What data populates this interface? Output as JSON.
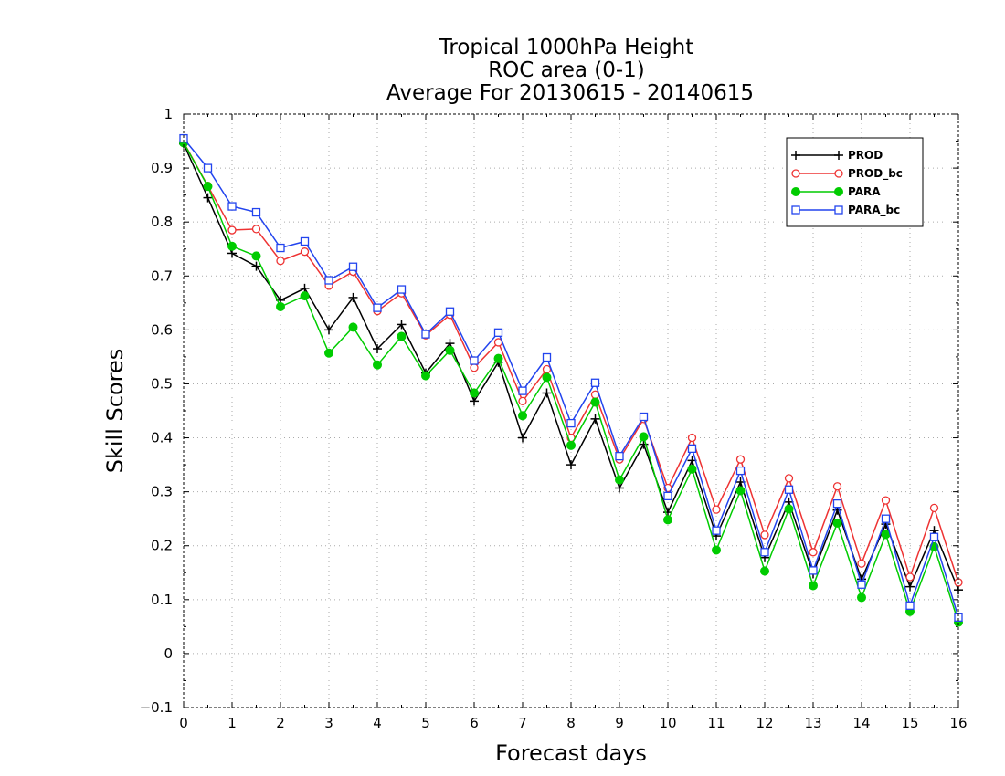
{
  "chart_data": {
    "type": "line",
    "title_lines": [
      "Tropical 1000hPa Height",
      "ROC area (0-1)",
      "Average For 20130615 - 20140615"
    ],
    "xlabel": "Forecast days",
    "ylabel": "Skill Scores",
    "xlim": [
      0,
      16
    ],
    "ylim": [
      -0.1,
      1
    ],
    "xticks": [
      0,
      1,
      2,
      3,
      4,
      5,
      6,
      7,
      8,
      9,
      10,
      11,
      12,
      13,
      14,
      15,
      16
    ],
    "yticks": [
      -0.1,
      0,
      0.1,
      0.2,
      0.3,
      0.4,
      0.5,
      0.6,
      0.7,
      0.8,
      0.9,
      1
    ],
    "ytick_labels": [
      "−0.1",
      "0",
      "0.1",
      "0.2",
      "0.3",
      "0.4",
      "0.5",
      "0.6",
      "0.7",
      "0.8",
      "0.9",
      "1"
    ],
    "grid": true,
    "legend_position": "top-right",
    "x": [
      0,
      0.5,
      1,
      1.5,
      2,
      2.5,
      3,
      3.5,
      4,
      4.5,
      5,
      5.5,
      6,
      6.5,
      7,
      7.5,
      8,
      8.5,
      9,
      9.5,
      10,
      10.5,
      11,
      11.5,
      12,
      12.5,
      13,
      13.5,
      14,
      14.5,
      15,
      15.5,
      16
    ],
    "series": [
      {
        "name": "PROD",
        "color": "#000000",
        "marker": "plus",
        "values": [
          0.945,
          0.845,
          0.742,
          0.718,
          0.655,
          0.677,
          0.6,
          0.66,
          0.565,
          0.61,
          0.52,
          0.575,
          0.468,
          0.54,
          0.4,
          0.483,
          0.35,
          0.435,
          0.307,
          0.388,
          0.262,
          0.358,
          0.218,
          0.318,
          0.178,
          0.281,
          0.148,
          0.266,
          0.138,
          0.24,
          0.124,
          0.228,
          0.118
        ]
      },
      {
        "name": "PROD_bc",
        "color": "#ee3333",
        "marker": "circle-open",
        "values": [
          0.948,
          0.867,
          0.785,
          0.787,
          0.728,
          0.745,
          0.682,
          0.708,
          0.635,
          0.668,
          0.59,
          0.628,
          0.53,
          0.577,
          0.468,
          0.527,
          0.4,
          0.48,
          0.36,
          0.435,
          0.307,
          0.4,
          0.267,
          0.36,
          0.22,
          0.325,
          0.188,
          0.31,
          0.167,
          0.284,
          0.142,
          0.27,
          0.132
        ]
      },
      {
        "name": "PARA",
        "color": "#00cc00",
        "marker": "circle-filled",
        "values": [
          0.947,
          0.866,
          0.755,
          0.737,
          0.643,
          0.663,
          0.557,
          0.605,
          0.535,
          0.588,
          0.515,
          0.562,
          0.483,
          0.547,
          0.441,
          0.512,
          0.386,
          0.466,
          0.322,
          0.402,
          0.248,
          0.342,
          0.192,
          0.302,
          0.153,
          0.268,
          0.126,
          0.242,
          0.104,
          0.221,
          0.078,
          0.198,
          0.058
        ]
      },
      {
        "name": "PARA_bc",
        "color": "#2244ee",
        "marker": "square-open",
        "values": [
          0.955,
          0.9,
          0.829,
          0.818,
          0.752,
          0.764,
          0.692,
          0.717,
          0.641,
          0.675,
          0.592,
          0.634,
          0.543,
          0.595,
          0.487,
          0.549,
          0.427,
          0.502,
          0.366,
          0.439,
          0.292,
          0.38,
          0.228,
          0.339,
          0.188,
          0.304,
          0.154,
          0.278,
          0.128,
          0.25,
          0.089,
          0.216,
          0.067
        ]
      }
    ]
  }
}
